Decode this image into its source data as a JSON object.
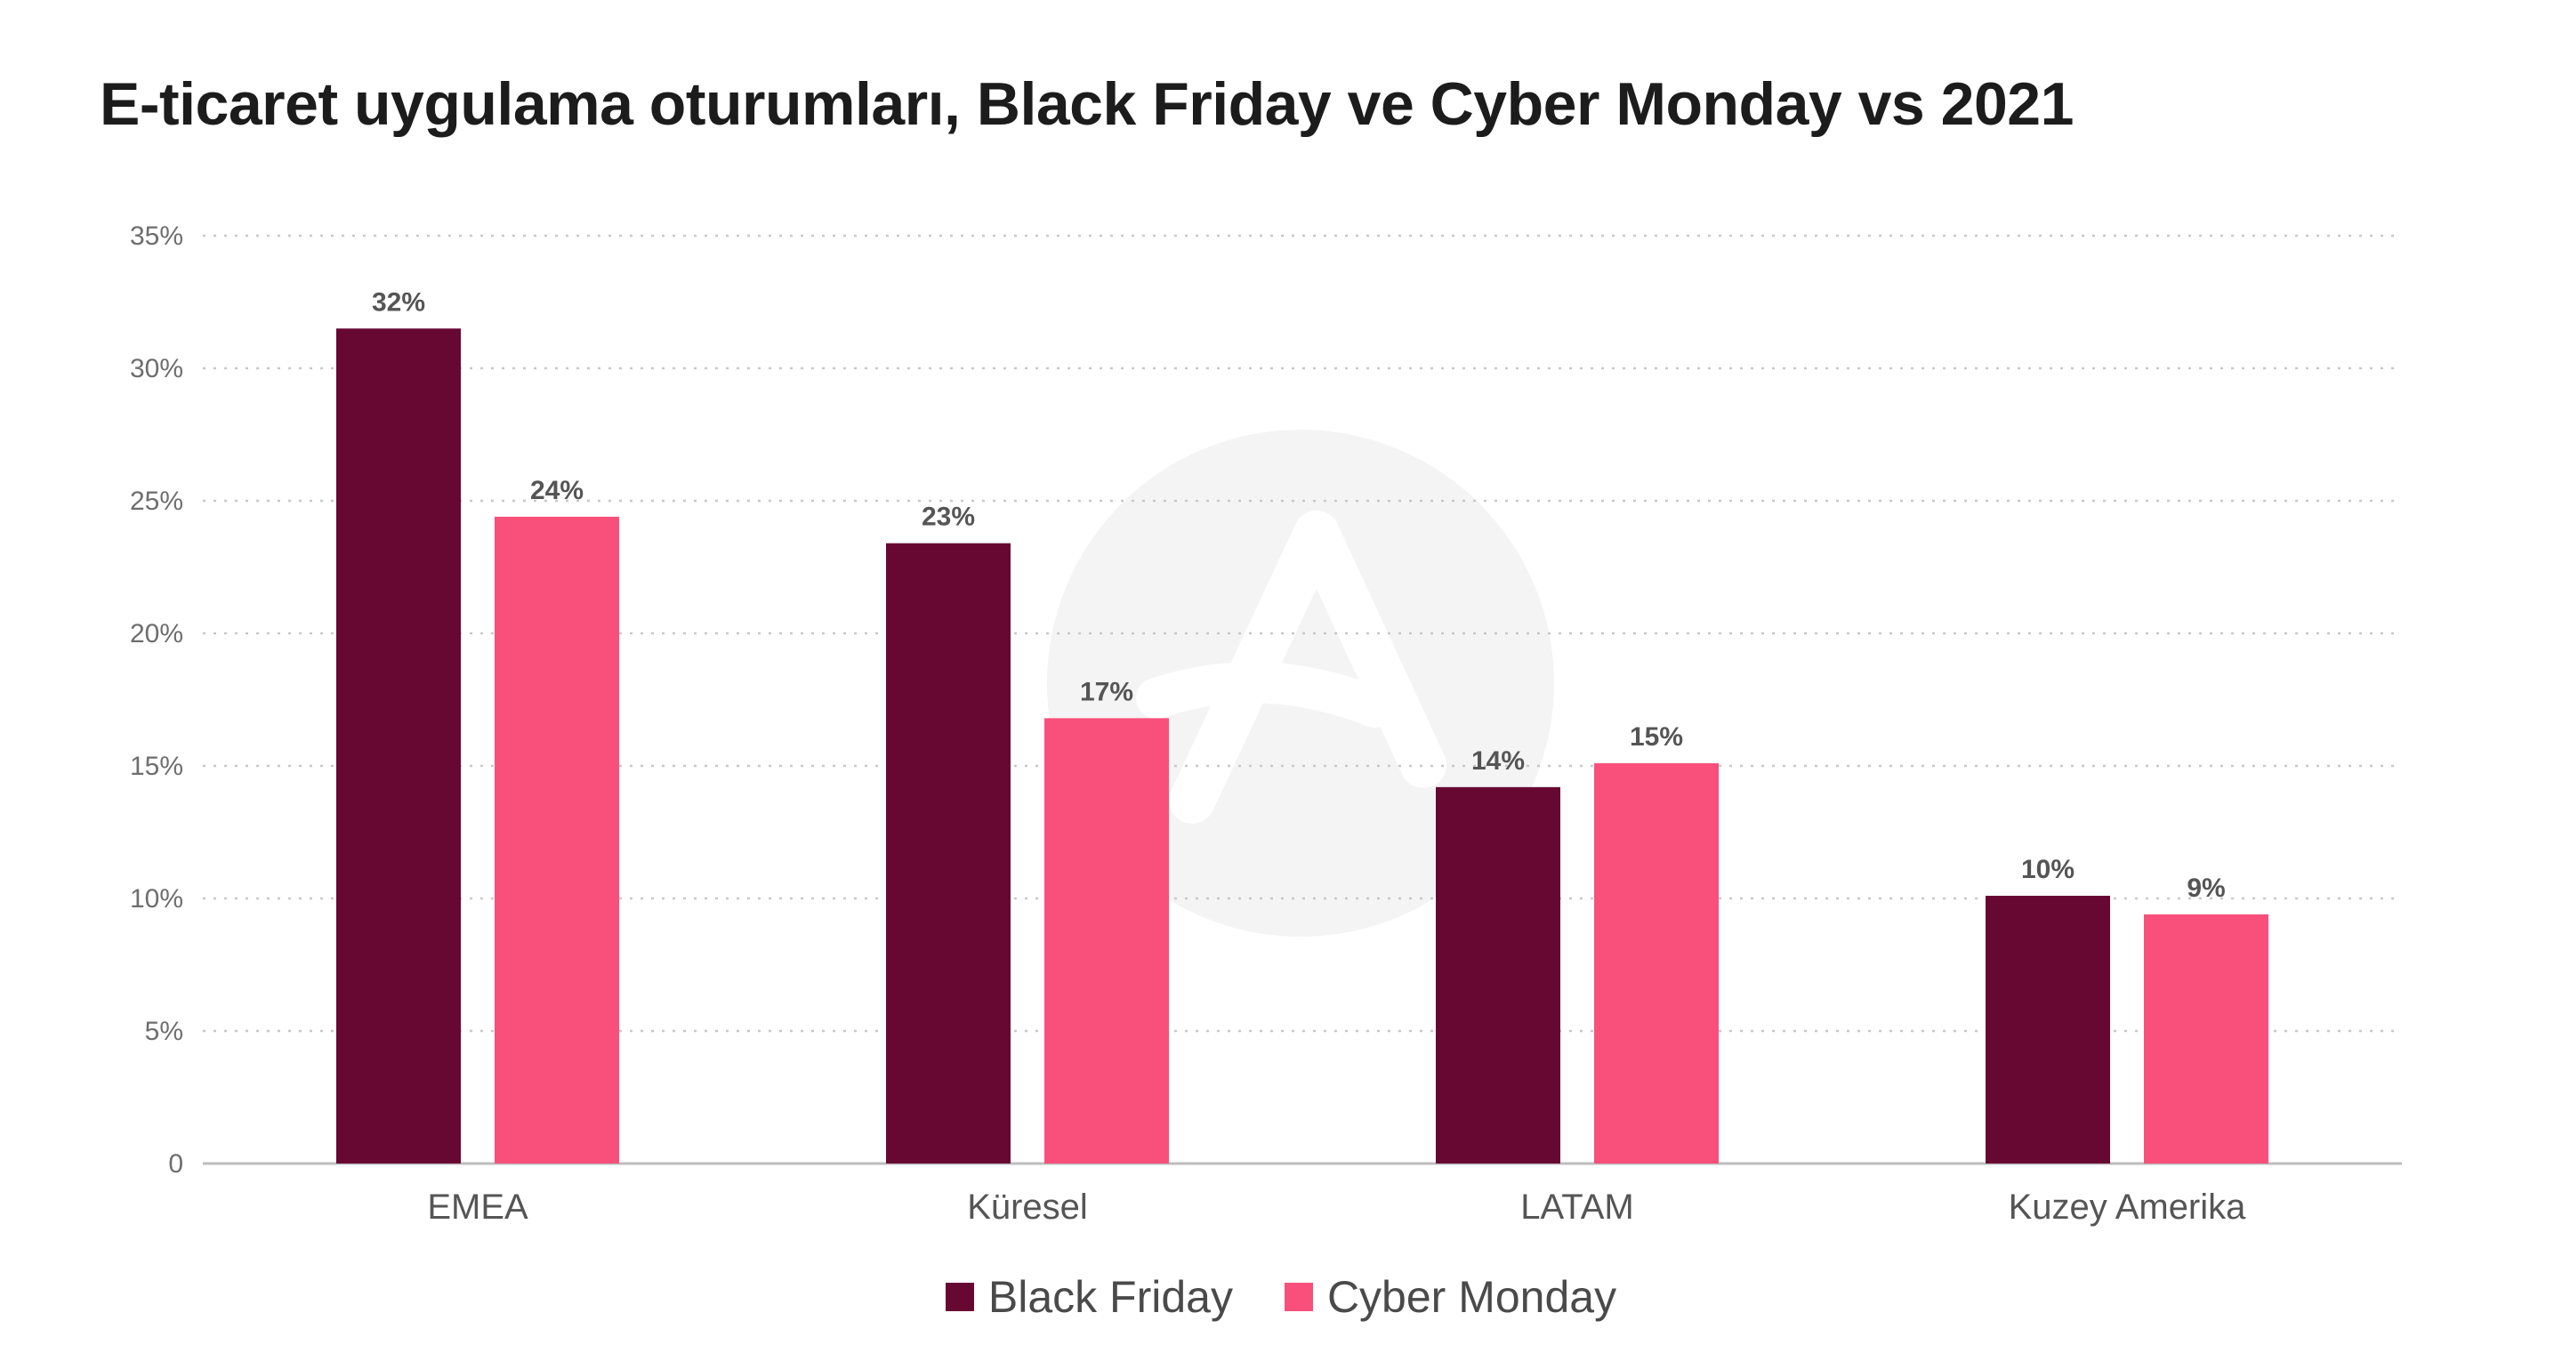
{
  "colors": {
    "series1": "#670833",
    "series2": "#f8507b",
    "grid": "#c8c8c8",
    "axis": "#bdbdbd"
  },
  "chart_data": {
    "type": "bar",
    "title": "E-ticaret uygulama oturumları, Black Friday ve Cyber Monday vs 2021",
    "categories": [
      "EMEA",
      "Küresel",
      "LATAM",
      "Kuzey Amerika"
    ],
    "series": [
      {
        "name": "Black Friday",
        "values": [
          31.5,
          23.4,
          14.2,
          10.1
        ],
        "labels": [
          "32%",
          "23%",
          "14%",
          "10%"
        ]
      },
      {
        "name": "Cyber Monday",
        "values": [
          24.4,
          16.8,
          15.1,
          9.4
        ],
        "labels": [
          "24%",
          "17%",
          "15%",
          "9%"
        ]
      }
    ],
    "yticks": [
      0,
      5,
      10,
      15,
      20,
      25,
      30,
      35
    ],
    "ytick_labels": [
      "0",
      "5%",
      "10%",
      "15%",
      "20%",
      "25%",
      "30%",
      "35%"
    ],
    "ylim": [
      0,
      35
    ],
    "grid": true,
    "legend": "bottom-center"
  }
}
